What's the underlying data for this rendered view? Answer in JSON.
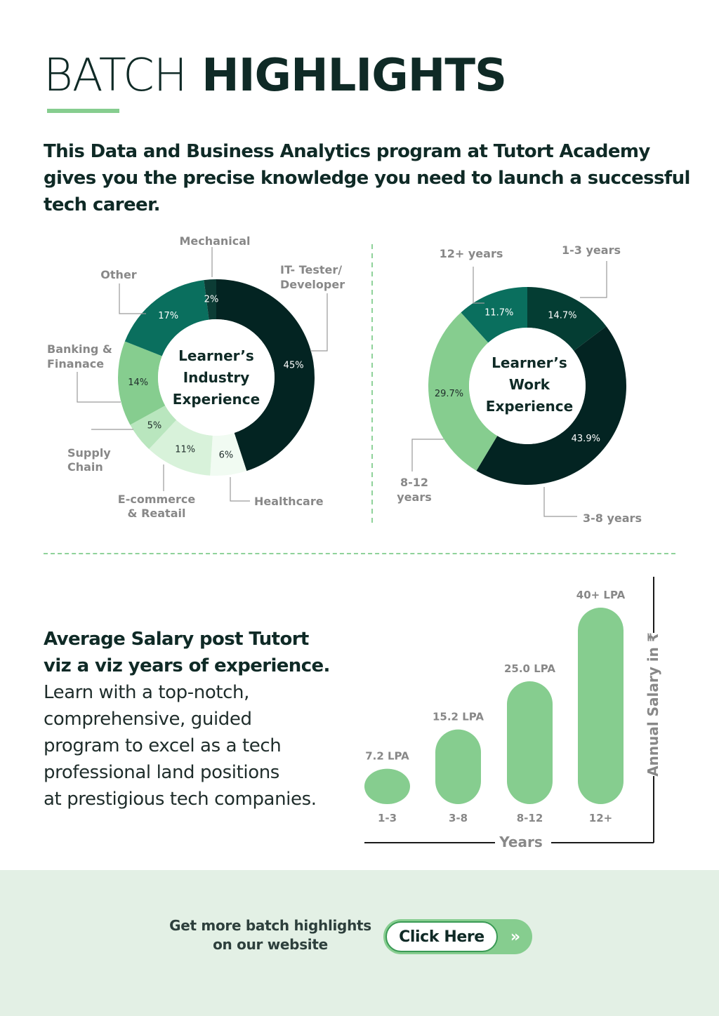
{
  "header": {
    "title_light": "BATCH",
    "title_bold": "HIGHLIGHTS"
  },
  "intro": "This  Data and Business Analytics  program at Tutort Academy gives you the precise knowledge you need to launch a successful tech career.",
  "colors": {
    "dark": "#032422",
    "teal": "#0a6f5e",
    "green": "#86cd8f",
    "light_green": "#b9e6be",
    "pale_green": "#d8f2da",
    "palest": "#f1fbf2",
    "text": "#0f2a26",
    "muted": "#888888",
    "footer_bg": "#e3f0e5"
  },
  "chart_data": [
    {
      "type": "pie",
      "center_label": [
        "Learner’s",
        "Industry",
        "Experience"
      ],
      "slices": [
        {
          "label": "IT- Tester/ Developer",
          "value": 45,
          "display": "45%",
          "color": "#032422"
        },
        {
          "label": "Healthcare",
          "value": 6,
          "display": "6%",
          "color": "#f1fbf2"
        },
        {
          "label": "E-commerce & Reatail",
          "value": 11,
          "display": "11%",
          "color": "#d8f2da"
        },
        {
          "label": "Supply Chain",
          "value": 5,
          "display": "5%",
          "color": "#b9e6be"
        },
        {
          "label": "Banking & Finanace",
          "value": 14,
          "display": "14%",
          "color": "#86cd8f"
        },
        {
          "label": "Other",
          "value": 17,
          "display": "17%",
          "color": "#0a6f5e"
        },
        {
          "label": "Mechanical",
          "value": 2,
          "display": "2%",
          "color": "#0c3c35"
        }
      ]
    },
    {
      "type": "pie",
      "center_label": [
        "Learner’s",
        "Work",
        "Experience"
      ],
      "slices": [
        {
          "label": "1-3 years",
          "value": 14.7,
          "display": "14.7%",
          "color": "#043d33"
        },
        {
          "label": "3-8 years",
          "value": 43.9,
          "display": "43.9%",
          "color": "#032422"
        },
        {
          "label": "8-12 years",
          "value": 29.7,
          "display": "29.7%",
          "color": "#86cd8f"
        },
        {
          "label": "12+ years",
          "value": 11.7,
          "display": "11.7%",
          "color": "#0a6f5e"
        }
      ]
    },
    {
      "type": "bar",
      "categories": [
        "1-3",
        "3-8",
        "8-12",
        "12+"
      ],
      "values": [
        7.2,
        15.2,
        25.0,
        40
      ],
      "value_labels": [
        "7.2 LPA",
        "15.2 LPA",
        "25.0 LPA",
        "40+ LPA"
      ],
      "xlabel": "Years",
      "ylabel": "Annual Salary in ₹",
      "ylim": [
        0,
        40
      ],
      "color": "#86cd8f"
    }
  ],
  "salary": {
    "heading_line1": "Average Salary post Tutort",
    "heading_line2": "viz a viz years of experience.",
    "body": [
      "Learn with a top-notch,",
      "comprehensive, guided",
      "program to excel as a tech",
      "professional land positions",
      "at prestigious tech companies."
    ]
  },
  "footer": {
    "text_line1": "Get more batch highlights",
    "text_line2": "on our website",
    "button_label": "Click Here",
    "button_arrows": "»"
  }
}
